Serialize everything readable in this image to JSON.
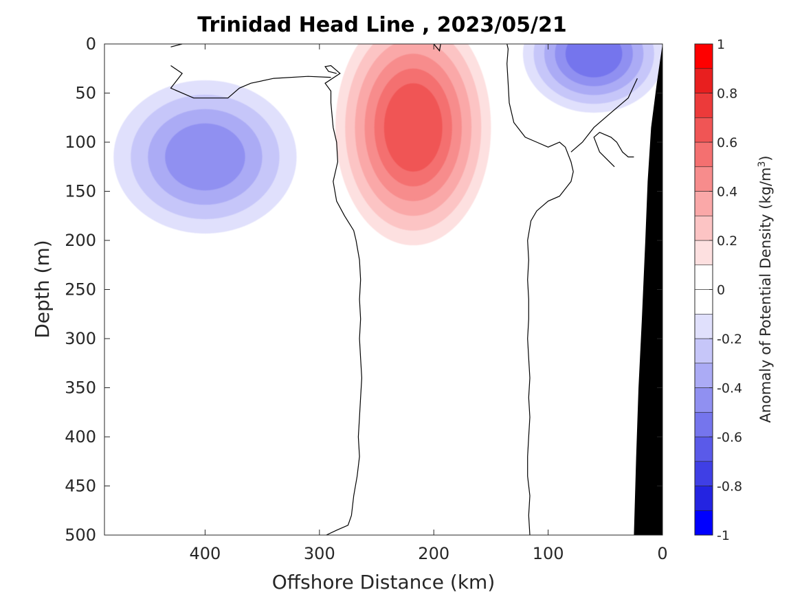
{
  "chart_data": {
    "type": "heatmap",
    "title": "Trinidad Head Line , 2023/05/21",
    "xlabel": "Offshore Distance (km)",
    "ylabel": "Depth (m)",
    "colorbar_label": "Anomaly of Potential Density (kg/m",
    "colorbar_label_sup": "3",
    "colorbar_label_end": ")",
    "x_reversed": true,
    "xlim": [
      0,
      488
    ],
    "ylim": [
      0,
      500
    ],
    "y_reversed": true,
    "x_ticks": [
      {
        "value": 400,
        "label": "400"
      },
      {
        "value": 300,
        "label": "300"
      },
      {
        "value": 200,
        "label": "200"
      },
      {
        "value": 100,
        "label": "100"
      },
      {
        "value": 0,
        "label": "0"
      }
    ],
    "y_ticks": [
      {
        "value": 0,
        "label": "0"
      },
      {
        "value": 50,
        "label": "50"
      },
      {
        "value": 100,
        "label": "100"
      },
      {
        "value": 150,
        "label": "150"
      },
      {
        "value": 200,
        "label": "200"
      },
      {
        "value": 250,
        "label": "250"
      },
      {
        "value": 300,
        "label": "300"
      },
      {
        "value": 350,
        "label": "350"
      },
      {
        "value": 400,
        "label": "400"
      },
      {
        "value": 450,
        "label": "450"
      },
      {
        "value": 500,
        "label": "500"
      }
    ],
    "colorbar": {
      "clim": [
        -1,
        1
      ],
      "levels": [
        -1,
        -0.9,
        -0.8,
        -0.7,
        -0.6,
        -0.5,
        -0.4,
        -0.3,
        -0.2,
        -0.1,
        0,
        0.1,
        0.2,
        0.3,
        0.4,
        0.5,
        0.6,
        0.7,
        0.8,
        0.9,
        1
      ],
      "ticks": [
        {
          "value": 1,
          "label": "1"
        },
        {
          "value": 0.8,
          "label": "0.8"
        },
        {
          "value": 0.6,
          "label": "0.6"
        },
        {
          "value": 0.4,
          "label": "0.4"
        },
        {
          "value": 0.2,
          "label": "0.2"
        },
        {
          "value": 0,
          "label": "0"
        },
        {
          "value": -0.2,
          "label": "-0.2"
        },
        {
          "value": -0.4,
          "label": "-0.4"
        },
        {
          "value": -0.6,
          "label": "-0.6"
        },
        {
          "value": -0.8,
          "label": "-0.8"
        },
        {
          "value": -1,
          "label": "-1"
        }
      ]
    },
    "colors": {
      "pos_1": "#fde0e0",
      "pos_2": "#fcc4c4",
      "pos_3": "#faa8a8",
      "pos_4": "#f78c8c",
      "pos_5": "#f47070",
      "pos_6": "#f05555",
      "pos_7": "#ec3a3a",
      "pos_8": "#e81f1f",
      "pos_9": "#fe0000",
      "neg_1": "#e0e0fc",
      "neg_2": "#c6c6f9",
      "neg_3": "#ababf5",
      "neg_4": "#9090f1",
      "neg_5": "#7575ed",
      "neg_6": "#5a5ae9",
      "neg_7": "#3f3fe5",
      "neg_8": "#2424e1",
      "neg_9": "#0000fe",
      "bathymetry": "#000000",
      "zero_contour": "#000000"
    },
    "anomaly_features": [
      {
        "name": "deep offshore negative anomaly",
        "sign": "negative",
        "peak": -0.4,
        "x_km": 400,
        "depth_m": 115
      },
      {
        "name": "mid-transect positive anomaly",
        "sign": "positive",
        "peak": 0.6,
        "x_km": 218,
        "depth_m": 85
      },
      {
        "name": "nearshore surface negative anomaly",
        "sign": "negative",
        "peak": -0.5,
        "x_km": 60,
        "depth_m": 10
      }
    ],
    "data_coverage": {
      "x_start_km": 430,
      "x_end_km": 20
    },
    "bathymetry": [
      {
        "x_km": 0,
        "depth_m": 0
      },
      {
        "x_km": 5,
        "depth_m": 40
      },
      {
        "x_km": 10,
        "depth_m": 85
      },
      {
        "x_km": 13,
        "depth_m": 140
      },
      {
        "x_km": 15,
        "depth_m": 200
      },
      {
        "x_km": 18,
        "depth_m": 280
      },
      {
        "x_km": 21,
        "depth_m": 350
      },
      {
        "x_km": 23,
        "depth_m": 420
      },
      {
        "x_km": 25,
        "depth_m": 500
      }
    ],
    "zero_contours": [
      {
        "id": "offshore-front",
        "points": [
          [
            294,
            500
          ],
          [
            285,
            495
          ],
          [
            275,
            490
          ],
          [
            272,
            480
          ],
          [
            270,
            460
          ],
          [
            267,
            440
          ],
          [
            265,
            420
          ],
          [
            266,
            400
          ],
          [
            265,
            380
          ],
          [
            264,
            360
          ],
          [
            263,
            340
          ],
          [
            264,
            320
          ],
          [
            265,
            300
          ],
          [
            264,
            280
          ],
          [
            265,
            260
          ],
          [
            264,
            240
          ],
          [
            265,
            220
          ],
          [
            268,
            200
          ],
          [
            270,
            190
          ],
          [
            278,
            175
          ],
          [
            285,
            160
          ],
          [
            288,
            140
          ],
          [
            284,
            120
          ],
          [
            285,
            100
          ],
          [
            288,
            85
          ],
          [
            290,
            60
          ],
          [
            290,
            48
          ],
          [
            295,
            40
          ],
          [
            282,
            30
          ],
          [
            290,
            22
          ],
          [
            295,
            23
          ],
          [
            292,
            28
          ],
          [
            285,
            30
          ]
        ]
      },
      {
        "id": "offshore-top",
        "points": [
          [
            430,
            22
          ],
          [
            420,
            30
          ],
          [
            430,
            45
          ],
          [
            410,
            55
          ],
          [
            380,
            55
          ],
          [
            370,
            45
          ],
          [
            360,
            40
          ],
          [
            340,
            35
          ],
          [
            310,
            33
          ],
          [
            290,
            34
          ]
        ]
      },
      {
        "id": "offshore-top-left",
        "points": [
          [
            430,
            3
          ],
          [
            420,
            0
          ]
        ]
      },
      {
        "id": "nearshore-front",
        "points": [
          [
            116,
            500
          ],
          [
            117,
            480
          ],
          [
            116,
            460
          ],
          [
            118,
            440
          ],
          [
            118,
            420
          ],
          [
            117,
            400
          ],
          [
            116,
            380
          ],
          [
            117,
            360
          ],
          [
            116,
            340
          ],
          [
            117,
            320
          ],
          [
            118,
            300
          ],
          [
            117,
            280
          ],
          [
            117,
            260
          ],
          [
            118,
            240
          ],
          [
            117,
            220
          ],
          [
            118,
            200
          ],
          [
            115,
            180
          ],
          [
            110,
            170
          ],
          [
            100,
            160
          ],
          [
            90,
            155
          ],
          [
            80,
            140
          ],
          [
            78,
            130
          ],
          [
            80,
            120
          ],
          [
            85,
            105
          ],
          [
            90,
            100
          ],
          [
            100,
            105
          ],
          [
            110,
            100
          ],
          [
            120,
            95
          ],
          [
            130,
            80
          ],
          [
            134,
            60
          ],
          [
            135,
            40
          ],
          [
            136,
            20
          ],
          [
            135,
            5
          ],
          [
            136,
            0
          ]
        ]
      },
      {
        "id": "nearshore-right",
        "points": [
          [
            80,
            110
          ],
          [
            70,
            100
          ],
          [
            60,
            85
          ],
          [
            45,
            70
          ],
          [
            35,
            60
          ],
          [
            30,
            55
          ],
          [
            22,
            35
          ]
        ]
      },
      {
        "id": "nearshore-loop",
        "points": [
          [
            42,
            125
          ],
          [
            55,
            110
          ],
          [
            60,
            95
          ],
          [
            55,
            90
          ],
          [
            45,
            95
          ],
          [
            40,
            100
          ],
          [
            35,
            110
          ],
          [
            30,
            115
          ],
          [
            25,
            115
          ]
        ]
      },
      {
        "id": "top-left-small",
        "points": [
          [
            194,
            0
          ],
          [
            195,
            7
          ],
          [
            200,
            0
          ]
        ]
      }
    ]
  }
}
